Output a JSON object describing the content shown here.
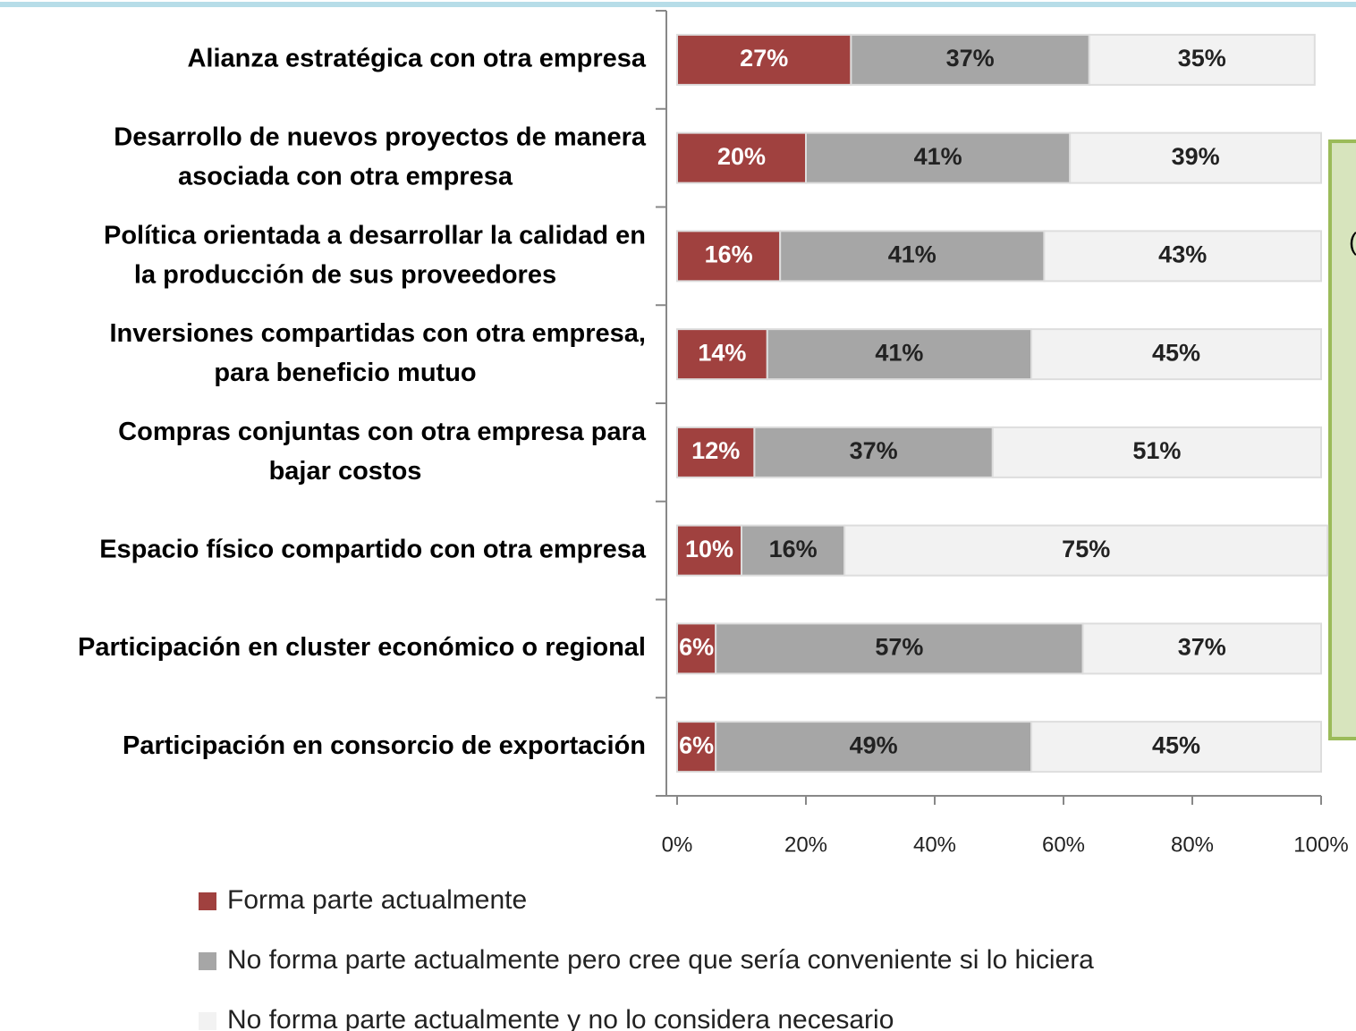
{
  "chart_data": {
    "type": "stacked-bar",
    "orientation": "horizontal",
    "categories": [
      "Alianza estratégica con otra empresa",
      "Desarrollo de nuevos proyectos de manera\nasociada con otra empresa",
      "Política orientada a desarrollar la calidad en\nla producción de sus proveedores",
      "Inversiones compartidas con otra empresa,\npara beneficio mutuo",
      "Compras conjuntas con otra empresa para\nbajar costos",
      "Espacio físico compartido con otra empresa",
      "Participación en cluster económico o regional",
      "Participación en consorcio de exportación"
    ],
    "series": [
      {
        "name": "Forma parte actualmente",
        "color": "#a0413f",
        "values": [
          27,
          20,
          16,
          14,
          12,
          10,
          6,
          6
        ],
        "value_labels": [
          "27%",
          "20%",
          "16%",
          "14%",
          "12%",
          "10%",
          "6%",
          "6%"
        ]
      },
      {
        "name": "No forma parte actualmente pero cree que sería conveniente si lo hiciera",
        "color": "#a6a6a6",
        "values": [
          37,
          41,
          41,
          41,
          37,
          16,
          57,
          49
        ],
        "value_labels": [
          "37%",
          "41%",
          "41%",
          "41%",
          "37%",
          "16%",
          "57%",
          "49%"
        ]
      },
      {
        "name": "No forma parte actualmente y no lo considera necesario",
        "color": "#f2f2f2",
        "values": [
          35,
          39,
          43,
          45,
          51,
          75,
          37,
          45
        ],
        "value_labels": [
          "35%",
          "39%",
          "43%",
          "45%",
          "51%",
          "75%",
          "37%",
          "45%"
        ]
      }
    ],
    "xlim": [
      0,
      100
    ],
    "xticks": [
      {
        "value": 0,
        "label": "0%"
      },
      {
        "value": 20,
        "label": "20%"
      },
      {
        "value": 40,
        "label": "40%"
      },
      {
        "value": 60,
        "label": "60%"
      },
      {
        "value": 80,
        "label": "80%"
      },
      {
        "value": 100,
        "label": "100%"
      }
    ],
    "legend": "bottom",
    "annotation": "("
  }
}
